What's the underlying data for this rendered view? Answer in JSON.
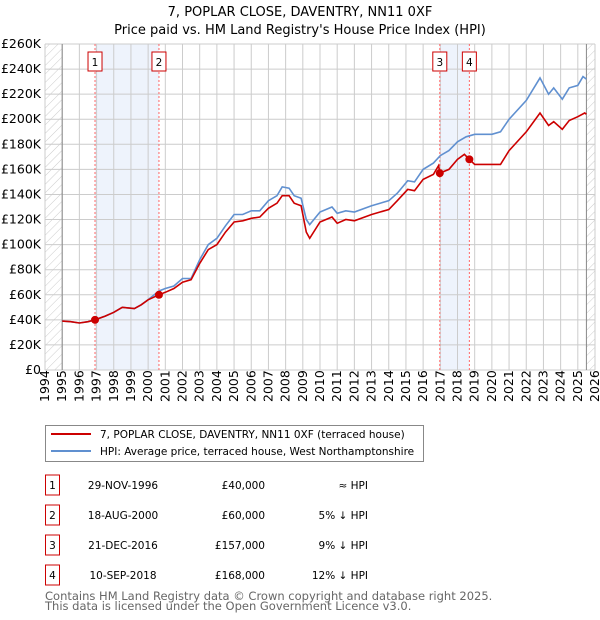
{
  "title": "7, POPLAR CLOSE, DAVENTRY, NN11 0XF",
  "subtitle": "Price paid vs. HM Land Registry's House Price Index (HPI)",
  "colors": {
    "property": "#cc0000",
    "hpi": "#6090d0",
    "shade": "#eef3fc",
    "marker_line": "#ff6666"
  },
  "chart_data": {
    "type": "line",
    "title": "7, POPLAR CLOSE, DAVENTRY, NN11 0XF",
    "subtitle": "Price paid vs. HM Land Registry's House Price Index (HPI)",
    "xlim": [
      1994,
      2026
    ],
    "ylim": [
      0,
      260000
    ],
    "x_ticks": [
      "1994",
      "1995",
      "1996",
      "1997",
      "1998",
      "1999",
      "2000",
      "2001",
      "2002",
      "2003",
      "2004",
      "2005",
      "2006",
      "2007",
      "2008",
      "2009",
      "2010",
      "2011",
      "2012",
      "2013",
      "2014",
      "2015",
      "2016",
      "2017",
      "2018",
      "2019",
      "2020",
      "2021",
      "2022",
      "2023",
      "2024",
      "2025",
      "2026"
    ],
    "y_ticks": [
      "£0",
      "£20K",
      "£40K",
      "£60K",
      "£80K",
      "£100K",
      "£120K",
      "£140K",
      "£160K",
      "£180K",
      "£200K",
      "£220K",
      "£240K",
      "£260K"
    ],
    "grid": true,
    "legend": "below",
    "data_range": [
      1995,
      2025.5
    ],
    "series": [
      {
        "name": "7, POPLAR CLOSE, DAVENTRY, NN11 0XF (terraced house)",
        "points": [
          [
            1995,
            39000
          ],
          [
            1995.5,
            38500
          ],
          [
            1996,
            37500
          ],
          [
            1996.5,
            38500
          ],
          [
            1996.91,
            40000
          ],
          [
            1997.5,
            43000
          ],
          [
            1998,
            46000
          ],
          [
            1998.5,
            50000
          ],
          [
            1999.2,
            49000
          ],
          [
            1999.6,
            52000
          ],
          [
            2000,
            56000
          ],
          [
            2000.63,
            60000
          ],
          [
            2001,
            62000
          ],
          [
            2001.5,
            65000
          ],
          [
            2002,
            70000
          ],
          [
            2002.5,
            72000
          ],
          [
            2003,
            85000
          ],
          [
            2003.5,
            96000
          ],
          [
            2004,
            100000
          ],
          [
            2004.5,
            110000
          ],
          [
            2005,
            118000
          ],
          [
            2005.5,
            119000
          ],
          [
            2006,
            121000
          ],
          [
            2006.5,
            122000
          ],
          [
            2007,
            129000
          ],
          [
            2007.5,
            133000
          ],
          [
            2007.8,
            139000
          ],
          [
            2008.2,
            139000
          ],
          [
            2008.5,
            133000
          ],
          [
            2008.9,
            131000
          ],
          [
            2009.2,
            110000
          ],
          [
            2009.4,
            105000
          ],
          [
            2010,
            118000
          ],
          [
            2010.7,
            122000
          ],
          [
            2011,
            117000
          ],
          [
            2011.5,
            120000
          ],
          [
            2012,
            119000
          ],
          [
            2013,
            124000
          ],
          [
            2014,
            128000
          ],
          [
            2014.5,
            135000
          ],
          [
            2015.1,
            144000
          ],
          [
            2015.5,
            143000
          ],
          [
            2016,
            152000
          ],
          [
            2016.6,
            156000
          ],
          [
            2016.9,
            163000
          ],
          [
            2016.97,
            157000
          ],
          [
            2017.5,
            160000
          ],
          [
            2018,
            168000
          ],
          [
            2018.4,
            172000
          ],
          [
            2018.69,
            168000
          ],
          [
            2019,
            164000
          ],
          [
            2020,
            164000
          ],
          [
            2020.5,
            164000
          ],
          [
            2021,
            175000
          ],
          [
            2022,
            190000
          ],
          [
            2022.8,
            205000
          ],
          [
            2023.3,
            195000
          ],
          [
            2023.6,
            198000
          ],
          [
            2024.1,
            192000
          ],
          [
            2024.5,
            199000
          ],
          [
            2025,
            202000
          ],
          [
            2025.4,
            205000
          ],
          [
            2025.5,
            204000
          ]
        ]
      },
      {
        "name": "HPI: Average price, terraced house, West Northamptonshire",
        "points": [
          [
            1995,
            39000
          ],
          [
            1995.5,
            38500
          ],
          [
            1996,
            37500
          ],
          [
            1996.5,
            38500
          ],
          [
            1996.91,
            40000
          ],
          [
            1997.5,
            43000
          ],
          [
            1998,
            46000
          ],
          [
            1998.5,
            50000
          ],
          [
            1999.2,
            49000
          ],
          [
            1999.6,
            52000
          ],
          [
            2000,
            56000
          ],
          [
            2000.63,
            63000
          ],
          [
            2001,
            65000
          ],
          [
            2001.5,
            67000
          ],
          [
            2002,
            73000
          ],
          [
            2002.5,
            73000
          ],
          [
            2003,
            88000
          ],
          [
            2003.5,
            100000
          ],
          [
            2004,
            105000
          ],
          [
            2004.5,
            115000
          ],
          [
            2005,
            124000
          ],
          [
            2005.5,
            124000
          ],
          [
            2006,
            127000
          ],
          [
            2006.5,
            127000
          ],
          [
            2007,
            135000
          ],
          [
            2007.5,
            139000
          ],
          [
            2007.8,
            146000
          ],
          [
            2008.2,
            145000
          ],
          [
            2008.5,
            139000
          ],
          [
            2008.9,
            137000
          ],
          [
            2009.2,
            120000
          ],
          [
            2009.4,
            116000
          ],
          [
            2010,
            126000
          ],
          [
            2010.7,
            130000
          ],
          [
            2011,
            125000
          ],
          [
            2011.5,
            127000
          ],
          [
            2012,
            126000
          ],
          [
            2013,
            131000
          ],
          [
            2014,
            135000
          ],
          [
            2014.5,
            141000
          ],
          [
            2015.1,
            151000
          ],
          [
            2015.5,
            150000
          ],
          [
            2016,
            160000
          ],
          [
            2016.6,
            165000
          ],
          [
            2017,
            171000
          ],
          [
            2017.5,
            175000
          ],
          [
            2018,
            182000
          ],
          [
            2018.5,
            186000
          ],
          [
            2019,
            188000
          ],
          [
            2020,
            188000
          ],
          [
            2020.5,
            190000
          ],
          [
            2021,
            200000
          ],
          [
            2022,
            215000
          ],
          [
            2022.8,
            233000
          ],
          [
            2023.3,
            220000
          ],
          [
            2023.6,
            225000
          ],
          [
            2024.1,
            216000
          ],
          [
            2024.5,
            225000
          ],
          [
            2025,
            227000
          ],
          [
            2025.3,
            234000
          ],
          [
            2025.5,
            232000
          ]
        ]
      }
    ],
    "sales": [
      {
        "label": "1",
        "x": 1996.91,
        "price": 40000
      },
      {
        "label": "2",
        "x": 2000.63,
        "price": 60000
      },
      {
        "label": "3",
        "x": 2016.97,
        "price": 157000
      },
      {
        "label": "4",
        "x": 2018.69,
        "price": 168000
      }
    ]
  },
  "legend": {
    "property": "7, POPLAR CLOSE, DAVENTRY, NN11 0XF (terraced house)",
    "hpi": "HPI: Average price, terraced house, West Northamptonshire"
  },
  "transactions": [
    {
      "num": "1",
      "date": "29-NOV-1996",
      "price": "£40,000",
      "hpi": "≈ HPI"
    },
    {
      "num": "2",
      "date": "18-AUG-2000",
      "price": "£60,000",
      "hpi": "5% ↓ HPI"
    },
    {
      "num": "3",
      "date": "21-DEC-2016",
      "price": "£157,000",
      "hpi": "9% ↓ HPI"
    },
    {
      "num": "4",
      "date": "10-SEP-2018",
      "price": "£168,000",
      "hpi": "12% ↓ HPI"
    }
  ],
  "footer": {
    "line1": "Contains HM Land Registry data © Crown copyright and database right 2025.",
    "line2": "This data is licensed under the Open Government Licence v3.0."
  }
}
